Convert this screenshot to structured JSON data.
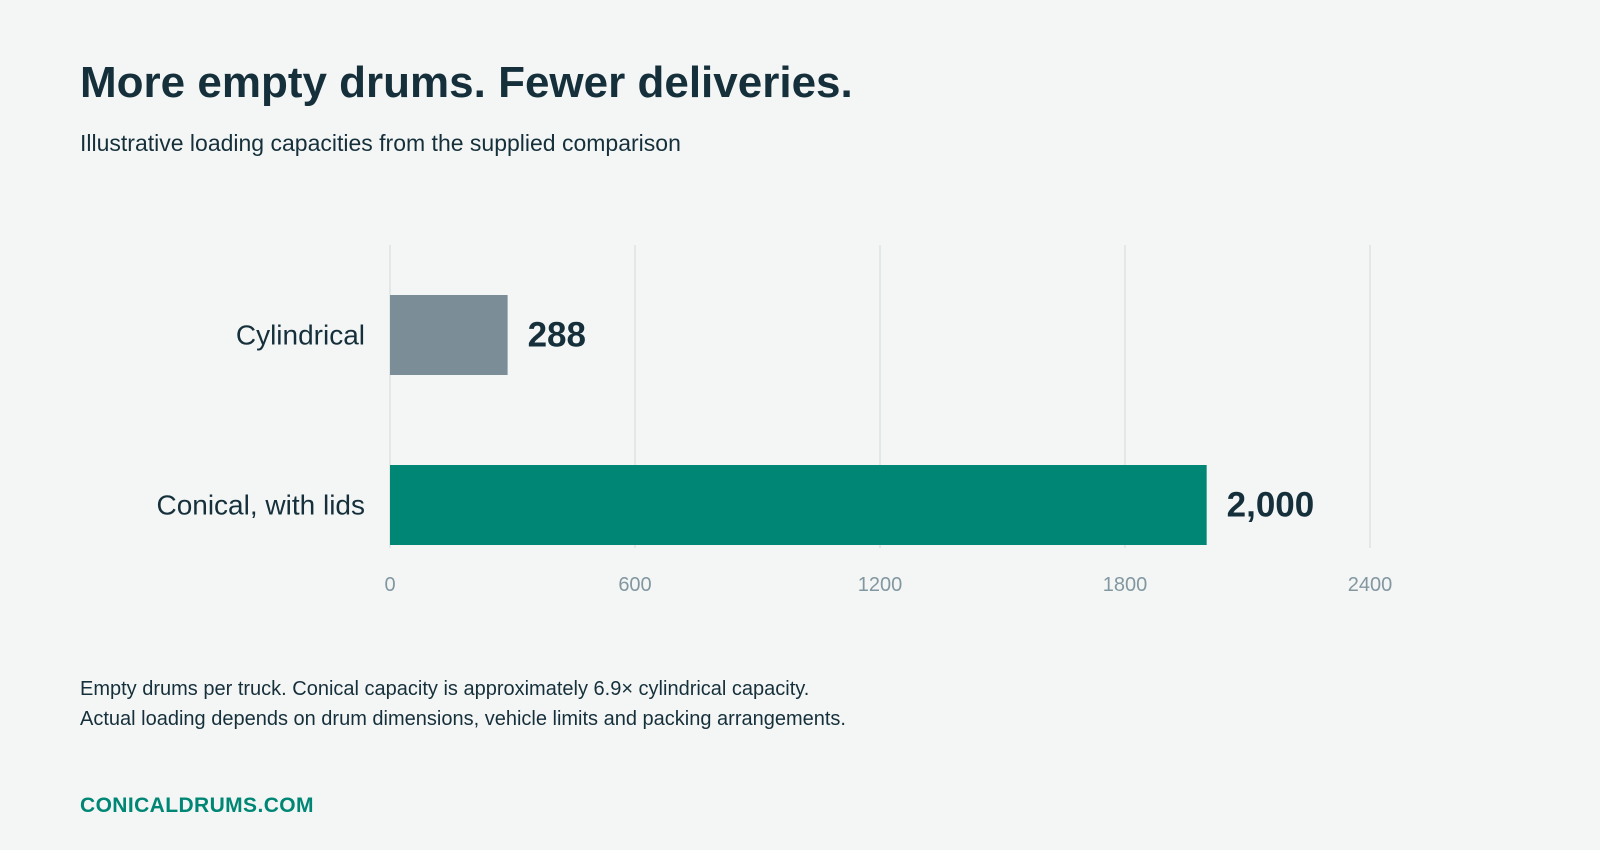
{
  "colors": {
    "background": "#f4f6f5",
    "text": "#16303b",
    "cylindrical_bar": "#7b8e97",
    "conical_bar": "#008674",
    "grid": "#dde2e0",
    "tick_text": "#8297a0",
    "brand": "#008674"
  },
  "chart_data": {
    "type": "bar",
    "orientation": "horizontal",
    "title": "More empty drums. Fewer deliveries.",
    "subtitle": "Illustrative loading capacities from the supplied comparison",
    "categories": [
      "Cylindrical",
      "Conical, with lids"
    ],
    "values": [
      288,
      2000
    ],
    "value_labels": [
      "288",
      "2,000"
    ],
    "bar_colors": [
      "#7b8e97",
      "#008674"
    ],
    "xlim": [
      0,
      2400
    ],
    "xticks": [
      0,
      600,
      1200,
      1800,
      2400
    ],
    "xtick_labels": [
      "0",
      "600",
      "1200",
      "1800",
      "2400"
    ],
    "grid": "vertical",
    "legend": "none"
  },
  "footnote": {
    "line1": "Empty drums per truck. Conical capacity is approximately 6.9× cylindrical capacity.",
    "line2": "Actual loading depends on drum dimensions, vehicle limits and packing arrangements."
  },
  "brand": "CONICALDRUMS.COM"
}
